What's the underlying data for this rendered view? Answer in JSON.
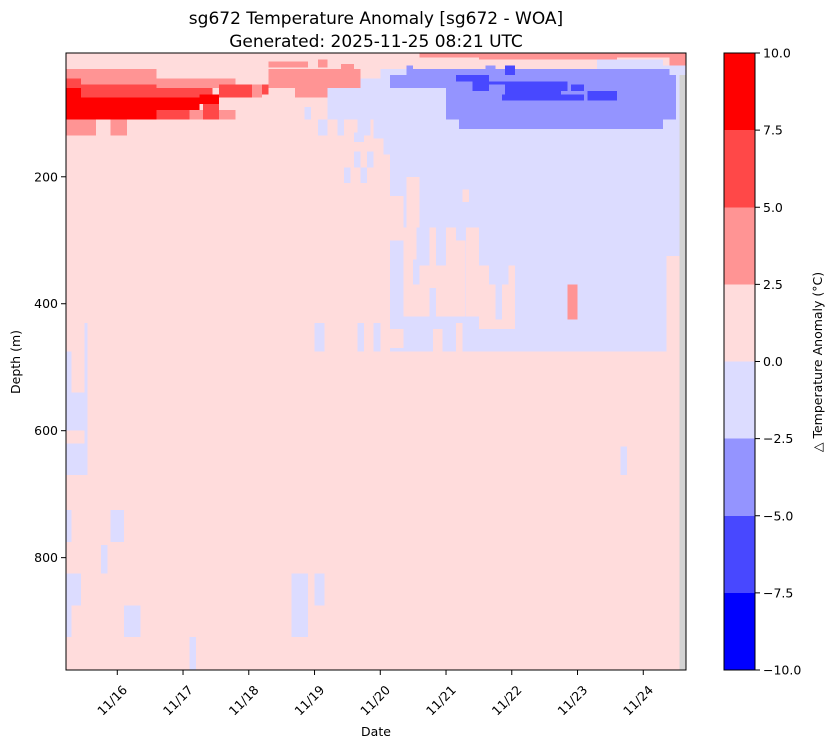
{
  "chart_data": {
    "type": "heatmap",
    "title": "sg672 Temperature Anomaly [sg672 - WOA]",
    "subtitle": "Generated: 2025-11-25 08:21 UTC",
    "xlabel": "Date",
    "ylabel": "Depth (m)",
    "colorbar_label": "△ Temperature Anomaly (°C)",
    "x_ticks": [
      "11/16",
      "11/17",
      "11/18",
      "11/19",
      "11/20",
      "11/21",
      "11/22",
      "11/23",
      "11/24"
    ],
    "x_tick_positions": [
      16,
      17,
      18,
      19,
      20,
      21,
      22,
      23,
      24
    ],
    "xlim": [
      15.22,
      24.65
    ],
    "y_ticks": [
      "200",
      "400",
      "600",
      "800"
    ],
    "y_tick_values": [
      200,
      400,
      600,
      800
    ],
    "ylim": [
      977,
      0
    ],
    "y_top_data": 5,
    "colorbar_ticks": [
      "10.0",
      "7.5",
      "5.0",
      "2.5",
      "0.0",
      "−2.5",
      "−5.0",
      "−7.5",
      "−10.0"
    ],
    "colorbar_levels": [
      {
        "range": [
          7.5,
          10
        ],
        "color": "#ff0000"
      },
      {
        "range": [
          5,
          7.5
        ],
        "color": "#ff4848"
      },
      {
        "range": [
          2.5,
          5
        ],
        "color": "#ff9494"
      },
      {
        "range": [
          0,
          2.5
        ],
        "color": "#ffdcdc"
      },
      {
        "range": [
          -2.5,
          0
        ],
        "color": "#dcdcff"
      },
      {
        "range": [
          -5,
          -2.5
        ],
        "color": "#9494ff"
      },
      {
        "range": [
          -7.5,
          -5
        ],
        "color": "#4848ff"
      },
      {
        "range": [
          -10,
          -7.5
        ],
        "color": "#0000ff"
      }
    ],
    "background_value": 1,
    "nodata_color": "#d3d3d3",
    "cells": [
      {
        "x": [
          15.22,
          16.6
        ],
        "y": [
          30,
          45
        ],
        "v": 4
      },
      {
        "x": [
          15.22,
          15.45
        ],
        "y": [
          45,
          60
        ],
        "v": 6
      },
      {
        "x": [
          15.45,
          17.8
        ],
        "y": [
          45,
          60
        ],
        "v": 4
      },
      {
        "x": [
          15.22,
          16.6
        ],
        "y": [
          60,
          110
        ],
        "v": 8.5
      },
      {
        "x": [
          15.45,
          16.6
        ],
        "y": [
          55,
          75
        ],
        "v": 6
      },
      {
        "x": [
          16.6,
          17.45
        ],
        "y": [
          60,
          75
        ],
        "v": 6
      },
      {
        "x": [
          16.6,
          17.25
        ],
        "y": [
          75,
          95
        ],
        "v": 8.5
      },
      {
        "x": [
          17.25,
          17.55
        ],
        "y": [
          70,
          85
        ],
        "v": 8.5
      },
      {
        "x": [
          17.55,
          18.05
        ],
        "y": [
          55,
          75
        ],
        "v": 6
      },
      {
        "x": [
          18.05,
          18.2
        ],
        "y": [
          55,
          75
        ],
        "v": 4
      },
      {
        "x": [
          18.2,
          18.3
        ],
        "y": [
          55,
          70
        ],
        "v": 6
      },
      {
        "x": [
          16.6,
          17.1
        ],
        "y": [
          95,
          110
        ],
        "v": 6
      },
      {
        "x": [
          17.1,
          17.3
        ],
        "y": [
          95,
          110
        ],
        "v": 4
      },
      {
        "x": [
          17.3,
          17.55
        ],
        "y": [
          85,
          110
        ],
        "v": 6
      },
      {
        "x": [
          17.55,
          17.8
        ],
        "y": [
          95,
          110
        ],
        "v": 4
      },
      {
        "x": [
          15.22,
          15.68
        ],
        "y": [
          110,
          135
        ],
        "v": 4
      },
      {
        "x": [
          15.9,
          16.15
        ],
        "y": [
          110,
          135
        ],
        "v": 4
      },
      {
        "x": [
          18.3,
          19.7
        ],
        "y": [
          30,
          60
        ],
        "v": 4
      },
      {
        "x": [
          18.7,
          19.8
        ],
        "y": [
          60,
          75
        ],
        "v": 4
      },
      {
        "x": [
          18.3,
          18.9
        ],
        "y": [
          18,
          28
        ],
        "v": 4
      },
      {
        "x": [
          19.05,
          19.2
        ],
        "y": [
          15,
          28
        ],
        "v": 4
      },
      {
        "x": [
          19.4,
          19.6
        ],
        "y": [
          22,
          30
        ],
        "v": 4
      },
      {
        "x": [
          20.6,
          21.6
        ],
        "y": [
          5,
          12
        ],
        "v": 4
      },
      {
        "x": [
          21.5,
          23.6
        ],
        "y": [
          5,
          15
        ],
        "v": 4
      },
      {
        "x": [
          23.6,
          24.4
        ],
        "y": [
          5,
          12
        ],
        "v": 4
      },
      {
        "x": [
          24.4,
          24.65
        ],
        "y": [
          5,
          25
        ],
        "v": 4
      },
      {
        "x": [
          19.8,
          24.55
        ],
        "y": [
          60,
          110
        ],
        "v": -1
      },
      {
        "x": [
          19.2,
          20.1
        ],
        "y": [
          60,
          110
        ],
        "v": -1
      },
      {
        "x": [
          19.7,
          20.4
        ],
        "y": [
          45,
          60
        ],
        "v": -1
      },
      {
        "x": [
          20.4,
          21.2
        ],
        "y": [
          30,
          42
        ],
        "v": -1
      },
      {
        "x": [
          20.0,
          20.4
        ],
        "y": [
          30,
          45
        ],
        "v": -1
      },
      {
        "x": [
          23.3,
          24.3
        ],
        "y": [
          15,
          30
        ],
        "v": -1
      },
      {
        "x": [
          24.3,
          24.65
        ],
        "y": [
          25,
          40
        ],
        "v": -1
      },
      {
        "x": [
          18.85,
          18.95
        ],
        "y": [
          90,
          110
        ],
        "v": -1
      },
      {
        "x": [
          19.05,
          19.2
        ],
        "y": [
          110,
          135
        ],
        "v": -1
      },
      {
        "x": [
          19.35,
          19.45
        ],
        "y": [
          110,
          135
        ],
        "v": -1
      },
      {
        "x": [
          19.65,
          19.85
        ],
        "y": [
          110,
          135
        ],
        "v": -1
      },
      {
        "x": [
          19.9,
          20.15
        ],
        "y": [
          110,
          140
        ],
        "v": -1
      },
      {
        "x": [
          19.6,
          19.7
        ],
        "y": [
          160,
          185
        ],
        "v": -1
      },
      {
        "x": [
          19.8,
          19.9
        ],
        "y": [
          160,
          185
        ],
        "v": -1
      },
      {
        "x": [
          19.45,
          19.55
        ],
        "y": [
          185,
          210
        ],
        "v": -1
      },
      {
        "x": [
          19.7,
          19.8
        ],
        "y": [
          185,
          210
        ],
        "v": -1
      },
      {
        "x": [
          20.15,
          24.35
        ],
        "y": [
          110,
          475
        ],
        "v": -1
      },
      {
        "x": [
          20.15,
          24.35
        ],
        "y": [
          100,
          475
        ],
        "v": -1
      },
      {
        "x": [
          19.6,
          19.75
        ],
        "y": [
          130,
          145
        ],
        "v": -1
      },
      {
        "x": [
          20.05,
          20.15
        ],
        "y": [
          110,
          165
        ],
        "v": -1
      },
      {
        "x": [
          24.35,
          24.55
        ],
        "y": [
          30,
          325
        ],
        "v": -1
      },
      {
        "x": [
          24.55,
          24.65
        ],
        "y": [
          30,
          110
        ],
        "v": -1
      },
      {
        "x": [
          20.15,
          21.0
        ],
        "y": [
          40,
          60
        ],
        "v": -4
      },
      {
        "x": [
          21.0,
          24.4
        ],
        "y": [
          30,
          110
        ],
        "v": -4
      },
      {
        "x": [
          21.2,
          24.3
        ],
        "y": [
          110,
          125
        ],
        "v": -4
      },
      {
        "x": [
          20.4,
          21.0
        ],
        "y": [
          30,
          40
        ],
        "v": -4
      },
      {
        "x": [
          20.4,
          20.5
        ],
        "y": [
          25,
          30
        ],
        "v": -4
      },
      {
        "x": [
          21.6,
          21.75
        ],
        "y": [
          25,
          30
        ],
        "v": -4
      },
      {
        "x": [
          21.9,
          22.05
        ],
        "y": [
          25,
          30
        ],
        "v": -4
      },
      {
        "x": [
          24.25,
          24.5
        ],
        "y": [
          40,
          110
        ],
        "v": -4
      },
      {
        "x": [
          21.15,
          21.65
        ],
        "y": [
          40,
          50
        ],
        "v": -6
      },
      {
        "x": [
          21.4,
          22.85
        ],
        "y": [
          50,
          65
        ],
        "v": -6
      },
      {
        "x": [
          21.9,
          22.05
        ],
        "y": [
          25,
          40
        ],
        "v": -6
      },
      {
        "x": [
          21.85,
          22.75
        ],
        "y": [
          65,
          80
        ],
        "v": -6
      },
      {
        "x": [
          22.9,
          23.1
        ],
        "y": [
          55,
          65
        ],
        "v": -6
      },
      {
        "x": [
          23.15,
          23.6
        ],
        "y": [
          65,
          80
        ],
        "v": -6
      },
      {
        "x": [
          22.75,
          23.1
        ],
        "y": [
          70,
          80
        ],
        "v": -6
      },
      {
        "x": [
          21.65,
          21.9
        ],
        "y": [
          55,
          70
        ],
        "v": -4
      },
      {
        "x": [
          20.15,
          20.35
        ],
        "y": [
          245,
          300
        ],
        "v": 1
      },
      {
        "x": [
          20.15,
          20.25
        ],
        "y": [
          320,
          375
        ],
        "v": -1
      },
      {
        "x": [
          20.4,
          20.6
        ],
        "y": [
          200,
          280
        ],
        "v": 1
      },
      {
        "x": [
          20.35,
          20.55
        ],
        "y": [
          280,
          420
        ],
        "v": 1
      },
      {
        "x": [
          20.55,
          20.75
        ],
        "y": [
          340,
          420
        ],
        "v": 1
      },
      {
        "x": [
          20.75,
          20.85
        ],
        "y": [
          280,
          375
        ],
        "v": 1
      },
      {
        "x": [
          20.85,
          21.0
        ],
        "y": [
          340,
          420
        ],
        "v": 1
      },
      {
        "x": [
          21.0,
          21.15
        ],
        "y": [
          280,
          420
        ],
        "v": 1
      },
      {
        "x": [
          21.15,
          21.3
        ],
        "y": [
          300,
          420
        ],
        "v": 1
      },
      {
        "x": [
          21.3,
          21.5
        ],
        "y": [
          280,
          420
        ],
        "v": 1
      },
      {
        "x": [
          21.5,
          21.65
        ],
        "y": [
          340,
          440
        ],
        "v": 1
      },
      {
        "x": [
          21.65,
          21.95
        ],
        "y": [
          370,
          440
        ],
        "v": 1
      },
      {
        "x": [
          21.95,
          22.05
        ],
        "y": [
          340,
          440
        ],
        "v": 1
      },
      {
        "x": [
          21.25,
          21.35
        ],
        "y": [
          220,
          240
        ],
        "v": 1
      },
      {
        "x": [
          20.15,
          20.35
        ],
        "y": [
          230,
          250
        ],
        "v": 1
      },
      {
        "x": [
          22.05,
          22.2
        ],
        "y": [
          340,
          420
        ],
        "v": -1
      },
      {
        "x": [
          22.85,
          23.0
        ],
        "y": [
          370,
          425
        ],
        "v": 4
      },
      {
        "x": [
          21.75,
          21.85
        ],
        "y": [
          340,
          425
        ],
        "v": -1
      },
      {
        "x": [
          20.5,
          20.6
        ],
        "y": [
          330,
          370
        ],
        "v": -1
      },
      {
        "x": [
          20.15,
          20.45
        ],
        "y": [
          440,
          470
        ],
        "v": 1
      },
      {
        "x": [
          19.0,
          19.15
        ],
        "y": [
          430,
          475
        ],
        "v": -1
      },
      {
        "x": [
          19.65,
          19.75
        ],
        "y": [
          430,
          475
        ],
        "v": -1
      },
      {
        "x": [
          19.9,
          20.0
        ],
        "y": [
          430,
          475
        ],
        "v": -1
      },
      {
        "x": [
          20.35,
          20.8
        ],
        "y": [
          430,
          475
        ],
        "v": -1
      },
      {
        "x": [
          20.8,
          20.95
        ],
        "y": [
          440,
          475
        ],
        "v": 1
      },
      {
        "x": [
          21.15,
          21.25
        ],
        "y": [
          430,
          475
        ],
        "v": 1
      },
      {
        "x": [
          24.35,
          24.65
        ],
        "y": [
          325,
          977
        ],
        "v": 1
      },
      {
        "x": [
          15.2,
          15.3
        ],
        "y": [
          475,
          540
        ],
        "v": -1
      },
      {
        "x": [
          15.22,
          15.5
        ],
        "y": [
          540,
          600
        ],
        "v": -1
      },
      {
        "x": [
          15.5,
          15.55
        ],
        "y": [
          430,
          670
        ],
        "v": -1
      },
      {
        "x": [
          15.22,
          15.5
        ],
        "y": [
          620,
          670
        ],
        "v": -1
      },
      {
        "x": [
          23.65,
          23.75
        ],
        "y": [
          625,
          670
        ],
        "v": -1
      },
      {
        "x": [
          15.22,
          15.3
        ],
        "y": [
          725,
          775
        ],
        "v": -1
      },
      {
        "x": [
          15.9,
          16.1
        ],
        "y": [
          725,
          775
        ],
        "v": -1
      },
      {
        "x": [
          15.75,
          15.85
        ],
        "y": [
          780,
          825
        ],
        "v": -1
      },
      {
        "x": [
          15.22,
          15.45
        ],
        "y": [
          825,
          875
        ],
        "v": -1
      },
      {
        "x": [
          15.22,
          15.3
        ],
        "y": [
          875,
          925
        ],
        "v": -1
      },
      {
        "x": [
          16.1,
          16.35
        ],
        "y": [
          875,
          925
        ],
        "v": -1
      },
      {
        "x": [
          18.65,
          18.9
        ],
        "y": [
          825,
          925
        ],
        "v": -1
      },
      {
        "x": [
          19.0,
          19.15
        ],
        "y": [
          825,
          875
        ],
        "v": -1
      },
      {
        "x": [
          17.1,
          17.2
        ],
        "y": [
          925,
          977
        ],
        "v": -1
      }
    ],
    "nodata_cells": [
      {
        "x": [
          24.55,
          24.65
        ],
        "y": [
          110,
          977
        ]
      },
      {
        "x": [
          24.55,
          24.65
        ],
        "y": [
          40,
          110
        ]
      }
    ]
  }
}
